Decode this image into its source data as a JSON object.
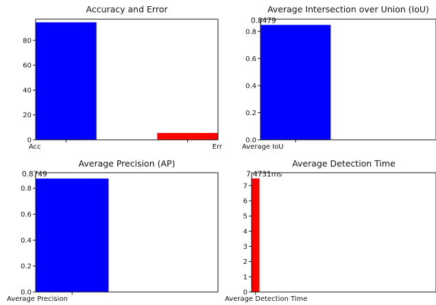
{
  "chart_data": [
    {
      "type": "bar",
      "title": "Accuracy and Error",
      "categories": [
        "Acc",
        "Err"
      ],
      "values": [
        94.5,
        5.5
      ],
      "colors": [
        "#0000ff",
        "#ff0000"
      ],
      "ylim": [
        0,
        97
      ],
      "yticks": [
        "0",
        "20",
        "40",
        "60",
        "80"
      ],
      "data_labels": [],
      "grid": false
    },
    {
      "type": "bar",
      "title": "Average Intersection over Union (IoU)",
      "categories": [
        "Average IoU"
      ],
      "values": [
        0.8479
      ],
      "colors": [
        "#0000ff"
      ],
      "ylim": [
        0,
        0.89
      ],
      "yticks": [
        "0.0",
        "0.2",
        "0.4",
        "0.6",
        "0.8"
      ],
      "data_labels": [
        "0.8479"
      ],
      "grid": false
    },
    {
      "type": "bar",
      "title": "Average Precision (AP)",
      "categories": [
        "Average Precision"
      ],
      "values": [
        0.8749
      ],
      "colors": [
        "#0000ff"
      ],
      "ylim": [
        0,
        0.92
      ],
      "yticks": [
        "0.0",
        "0.2",
        "0.4",
        "0.6",
        "0.8"
      ],
      "data_labels": [
        "0.8749"
      ],
      "grid": false
    },
    {
      "type": "bar",
      "title": "Average Detection Time",
      "categories": [
        "Average Detection Time"
      ],
      "values": [
        7.4731
      ],
      "colors": [
        "#ff0000"
      ],
      "ylim": [
        0,
        7.85
      ],
      "yticks": [
        "0",
        "1",
        "2",
        "3",
        "4",
        "5",
        "6",
        "7"
      ],
      "data_labels": [
        "7.4731ms"
      ],
      "grid": false
    }
  ]
}
